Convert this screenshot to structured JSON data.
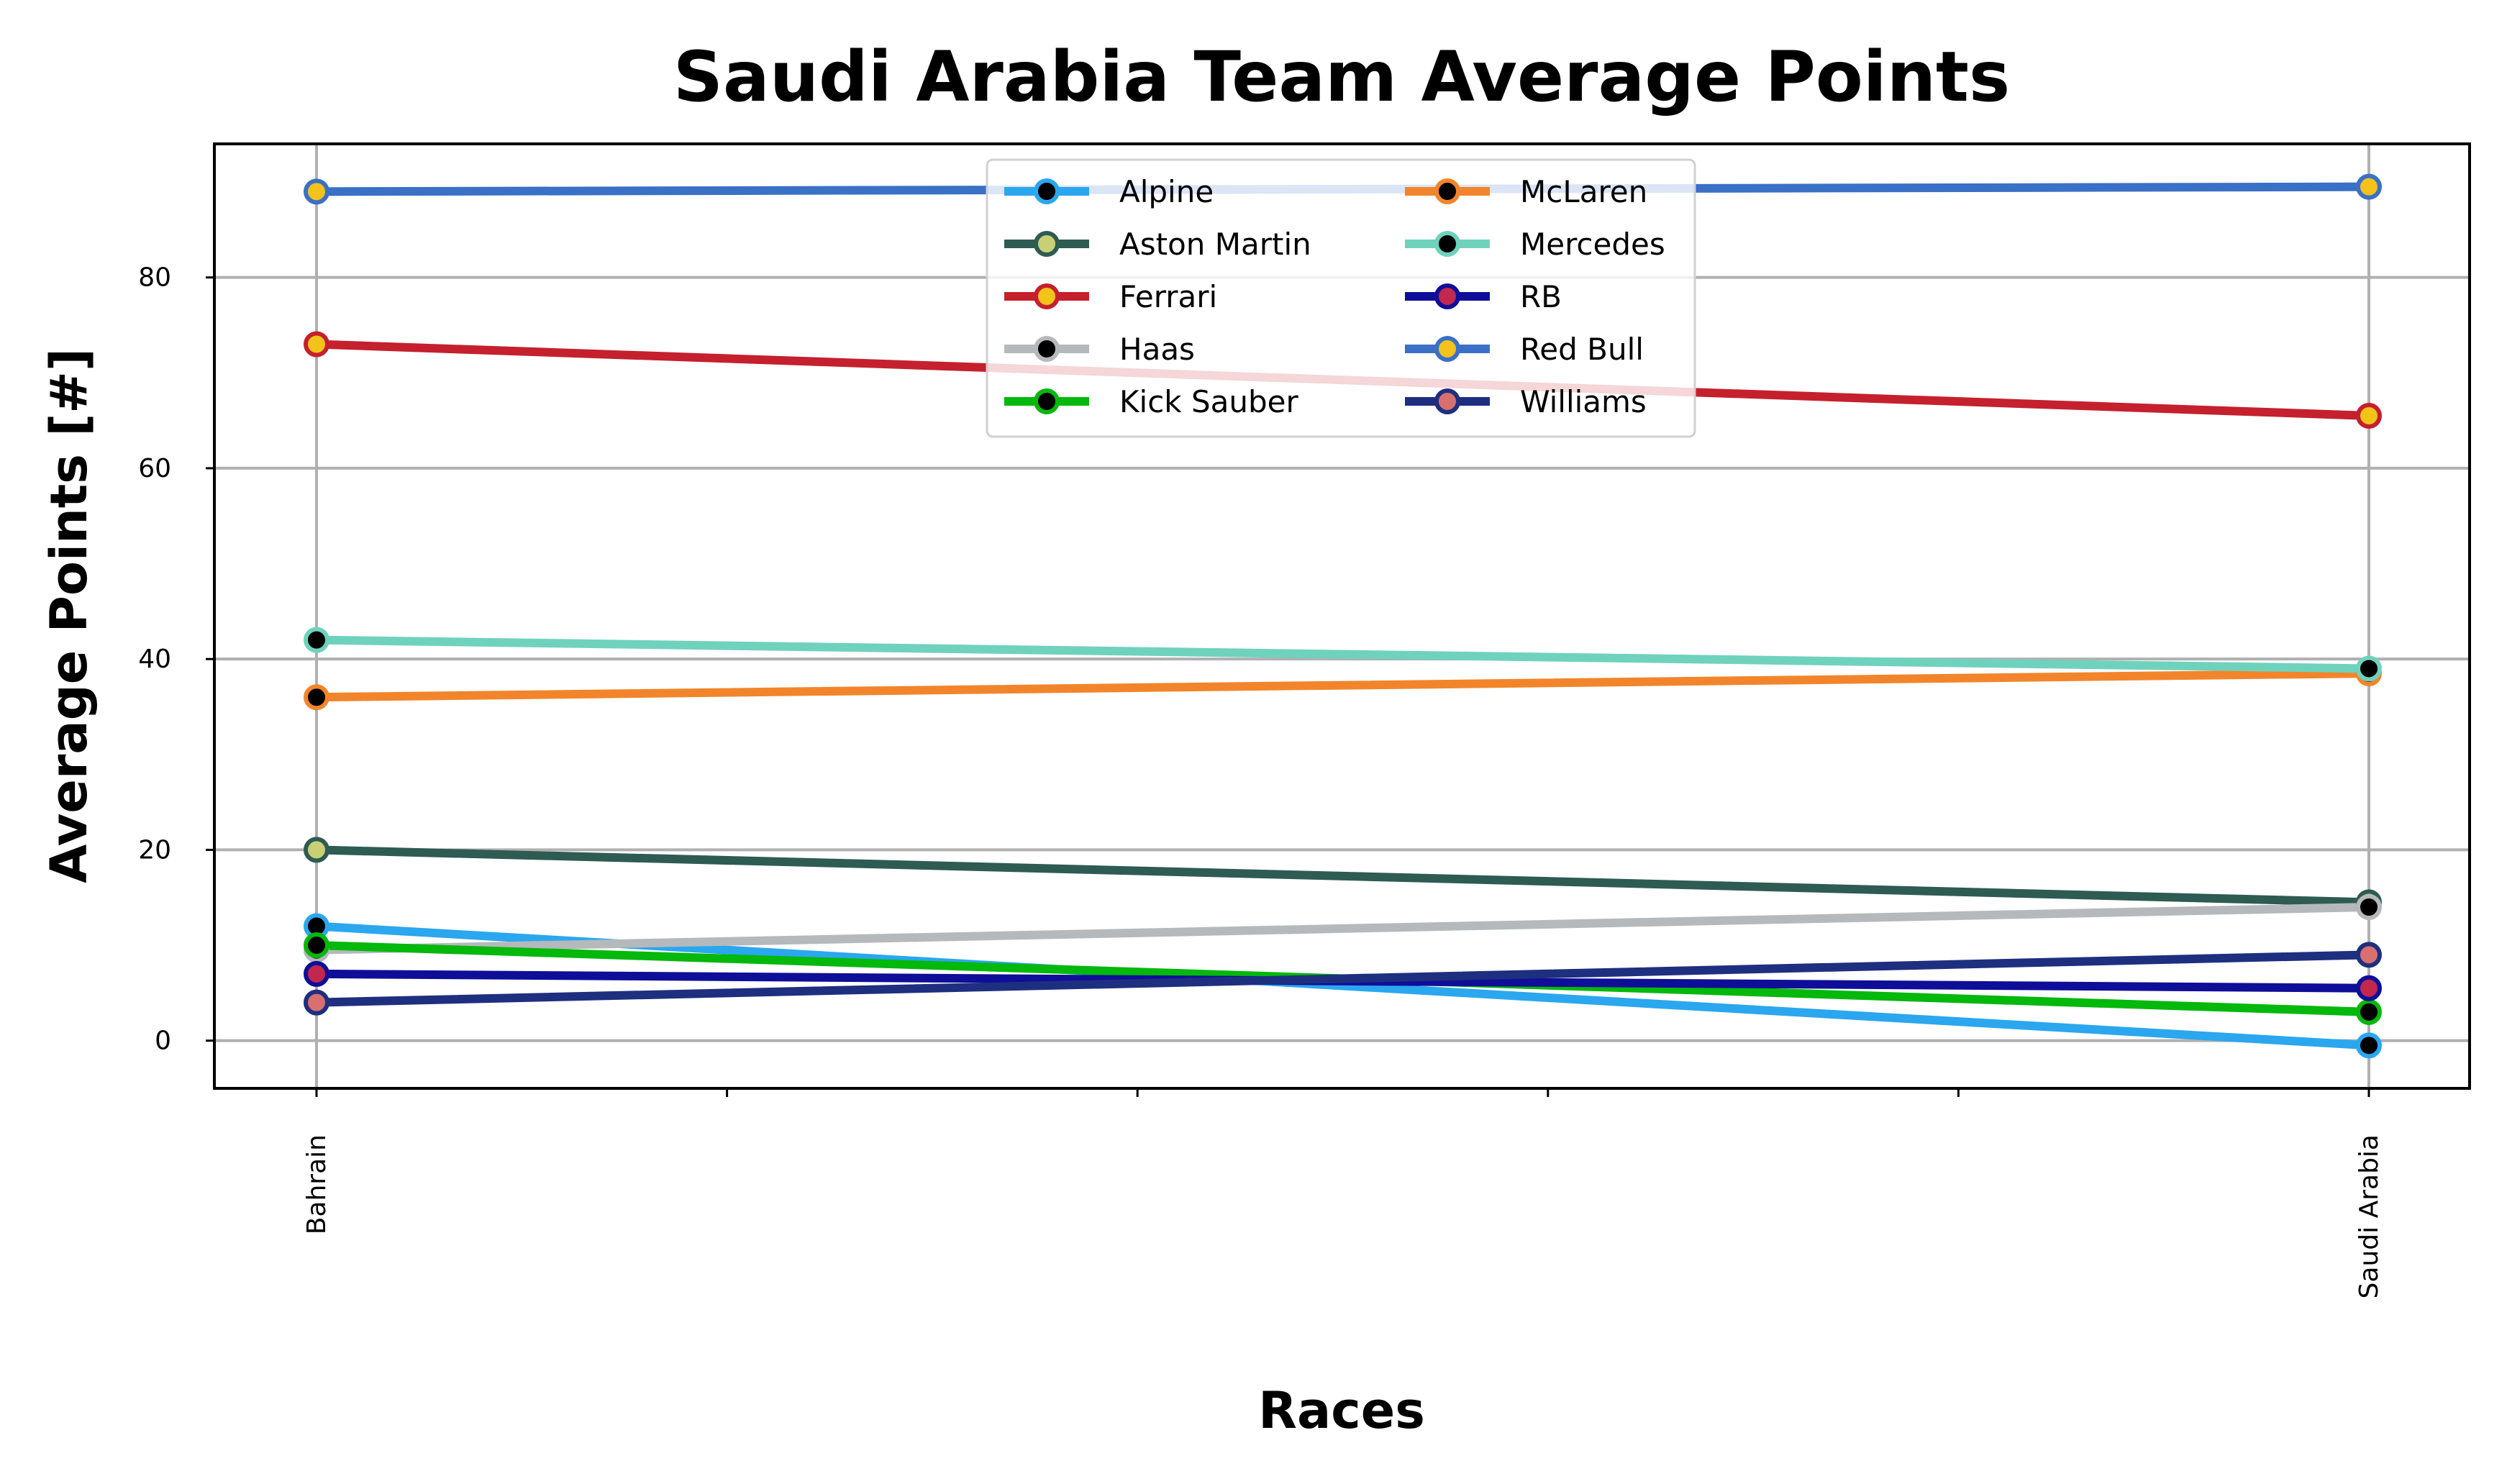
{
  "chart_data": {
    "type": "line",
    "title": "Saudi Arabia Team Average Points",
    "xlabel": "Races",
    "ylabel": "Average Points [#]",
    "categories": [
      "Bahrain",
      "Saudi Arabia"
    ],
    "ylim": [
      -5,
      94
    ],
    "yticks": [
      0,
      20,
      40,
      60,
      80
    ],
    "grid": true,
    "legend_position": "top-center",
    "legend_columns": 2,
    "series": [
      {
        "name": "Alpine",
        "values": [
          12,
          -0.5
        ],
        "color": "#2aa7ee",
        "marker_face": "#000000"
      },
      {
        "name": "Aston Martin",
        "values": [
          20,
          14.5
        ],
        "color": "#2e5b52",
        "marker_face": "#c9cf74"
      },
      {
        "name": "Ferrari",
        "values": [
          73,
          65.5
        ],
        "color": "#c5202d",
        "marker_face": "#f2c318"
      },
      {
        "name": "Haas",
        "values": [
          9.5,
          14
        ],
        "color": "#b5b9bc",
        "marker_face": "#000000"
      },
      {
        "name": "Kick Sauber",
        "values": [
          10,
          3
        ],
        "color": "#04b80c",
        "marker_face": "#000000"
      },
      {
        "name": "McLaren",
        "values": [
          36,
          38.5
        ],
        "color": "#f2852b",
        "marker_face": "#000000"
      },
      {
        "name": "Mercedes",
        "values": [
          42,
          39
        ],
        "color": "#6fd2bc",
        "marker_face": "#000000"
      },
      {
        "name": "RB",
        "values": [
          7,
          5.5
        ],
        "color": "#0f0e98",
        "marker_face": "#c2274e"
      },
      {
        "name": "Red Bull",
        "values": [
          89,
          89.5
        ],
        "color": "#3a70c6",
        "marker_face": "#f4c21c"
      },
      {
        "name": "Williams",
        "values": [
          4,
          9
        ],
        "color": "#1e2f80",
        "marker_face": "#d7706f"
      }
    ]
  }
}
